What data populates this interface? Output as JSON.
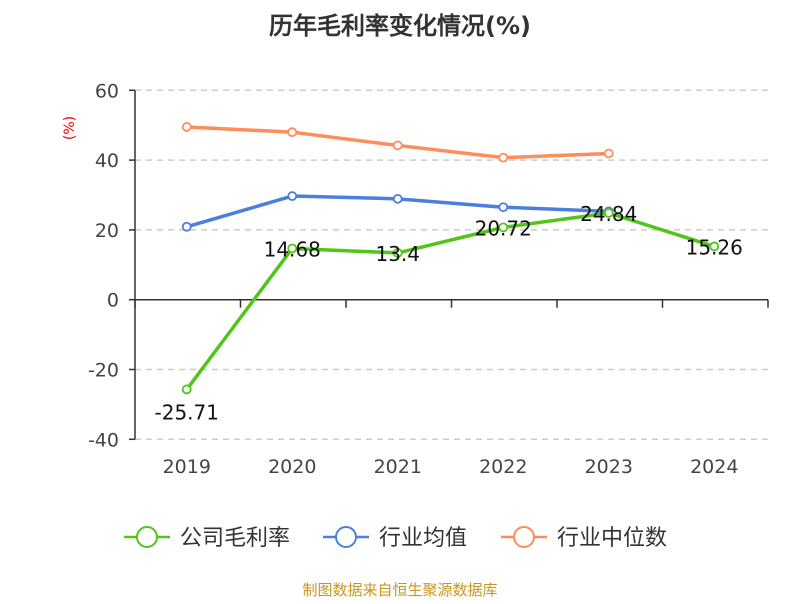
{
  "chart_data": {
    "type": "line",
    "title": "历年毛利率变化情况(%)",
    "ylabel": "(%)",
    "xlabel": "",
    "categories": [
      "2019",
      "2020",
      "2021",
      "2022",
      "2023",
      "2024"
    ],
    "ylim": [
      -40,
      60
    ],
    "yticks": [
      -40,
      -20,
      0,
      20,
      40,
      60
    ],
    "grid": true,
    "legend_position": "bottom",
    "series": [
      {
        "name": "公司毛利率",
        "color": "#52c41a",
        "values": [
          -25.71,
          14.68,
          13.4,
          20.72,
          24.84,
          15.26
        ],
        "labels": [
          "-25.71",
          "14.68",
          "13.4",
          "20.72",
          "24.84",
          "15.26"
        ]
      },
      {
        "name": "行业均值",
        "color": "#4a7fe0",
        "values": [
          20.9,
          29.7,
          28.9,
          26.5,
          25.3,
          null
        ]
      },
      {
        "name": "行业中位数",
        "color": "#ff8c5a",
        "values": [
          49.5,
          48.0,
          44.2,
          40.7,
          41.9,
          null
        ]
      }
    ]
  },
  "source": "制图数据来自恒生聚源数据库"
}
